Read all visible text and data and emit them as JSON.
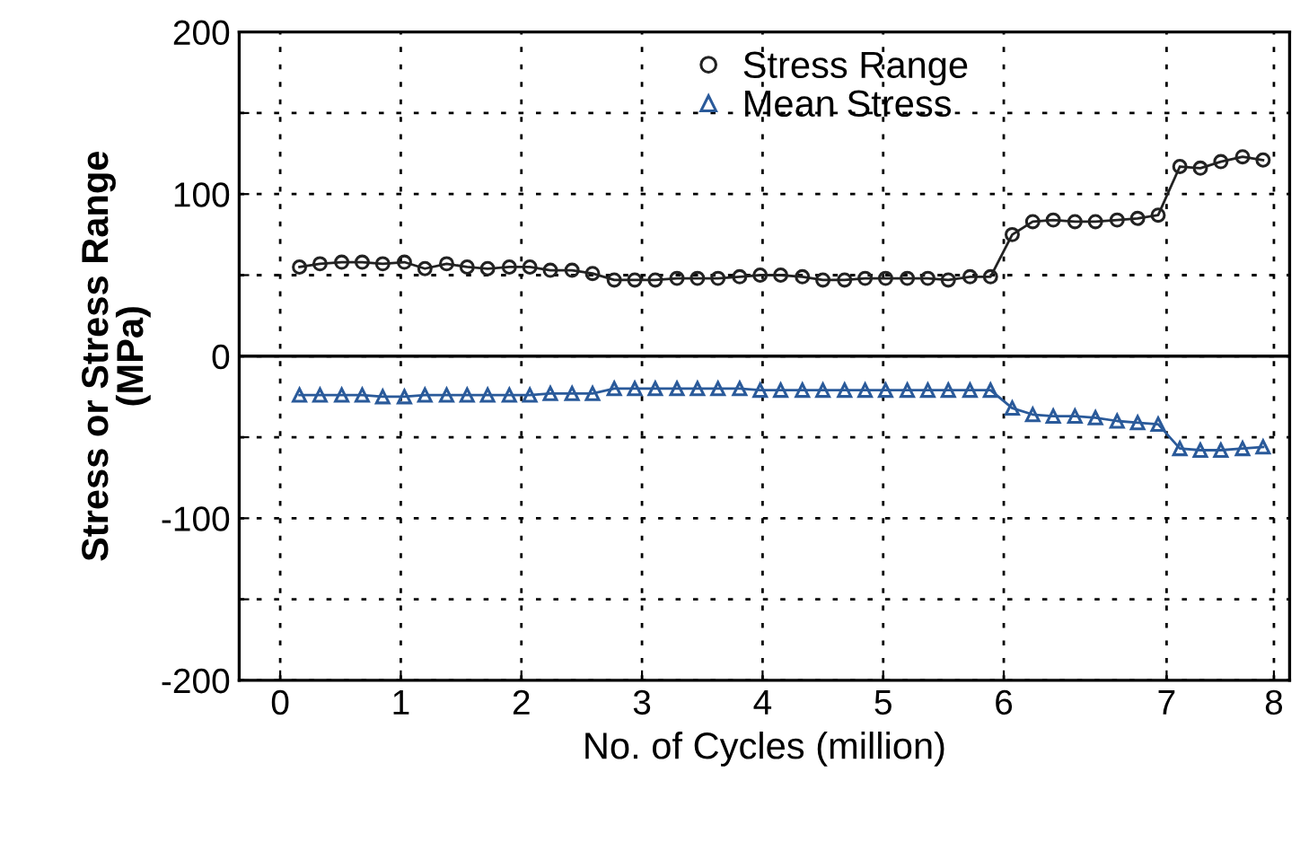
{
  "chart_data": {
    "type": "line",
    "xlabel": "No. of Cycles (million)",
    "ylabel": "Stress or Stress Range\n(MPa)",
    "x": [
      0.16,
      0.33,
      0.51,
      0.68,
      0.85,
      1.03,
      1.2,
      1.38,
      1.55,
      1.72,
      1.9,
      2.07,
      2.24,
      2.42,
      2.59,
      2.77,
      2.94,
      3.11,
      3.29,
      3.46,
      3.63,
      3.81,
      3.98,
      4.15,
      4.33,
      4.5,
      4.68,
      4.85,
      5.02,
      5.2,
      5.37,
      5.54,
      5.72,
      5.89,
      6.07,
      6.24,
      6.41,
      6.59,
      6.76,
      6.94,
      7.11,
      7.28,
      7.46,
      7.63,
      7.8,
      7.98,
      8.15
    ],
    "series": [
      {
        "name": "Stress Range",
        "color": "#222222",
        "marker": "circle",
        "values": [
          55,
          57,
          58,
          58,
          57,
          58,
          54,
          57,
          55,
          54,
          55,
          55,
          53,
          53,
          51,
          47,
          47,
          47,
          48,
          48,
          48,
          49,
          50,
          50,
          49,
          47,
          47,
          48,
          48,
          48,
          48,
          47,
          49,
          49,
          75,
          83,
          84,
          83,
          83,
          84,
          85,
          87,
          117,
          116,
          120,
          123,
          121
        ]
      },
      {
        "name": "Mean Stress",
        "color": "#2a5a9a",
        "marker": "triangle",
        "values": [
          -24,
          -24,
          -24,
          -24,
          -25,
          -25,
          -24,
          -24,
          -24,
          -24,
          -24,
          -24,
          -23,
          -23,
          -23,
          -20,
          -20,
          -20,
          -20,
          -20,
          -20,
          -20,
          -21,
          -21,
          -21,
          -21,
          -21,
          -21,
          -21,
          -21,
          -21,
          -21,
          -21,
          -21,
          -32,
          -36,
          -37,
          -37,
          -38,
          -40,
          -41,
          -42,
          -57,
          -58,
          -58,
          -57,
          -56
        ]
      }
    ],
    "xlim": [
      -0.34,
      8.37
    ],
    "xticks": [
      0,
      1,
      2,
      3,
      4,
      5,
      6,
      {
        "value": 7.35,
        "label": "7"
      },
      {
        "value": 8.24,
        "label": "8"
      }
    ],
    "ylim": [
      -200,
      200
    ],
    "yticks": [
      -200,
      {
        "value": -150,
        "label": null
      },
      -100,
      {
        "value": -50,
        "label": null
      },
      0,
      {
        "value": 50,
        "label": null
      },
      100,
      {
        "value": 150,
        "label": null
      },
      200
    ],
    "ref_lines": [
      {
        "axis": "y",
        "value": 0,
        "color": "#000000",
        "line_style": "solid"
      }
    ],
    "grid": true,
    "legend": "top"
  }
}
